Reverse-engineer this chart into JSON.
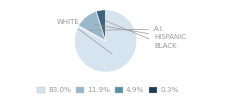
{
  "labels": [
    "WHITE",
    "A.I.",
    "HISPANIC",
    "BLACK"
  ],
  "values": [
    83.0,
    0.3,
    11.9,
    4.9
  ],
  "colors": [
    "#d6e4f0",
    "#5b8fa8",
    "#9ab8cc",
    "#3d6478"
  ],
  "legend_labels": [
    "83.0%",
    "11.9%",
    "4.9%",
    "0.3%"
  ],
  "legend_colors": [
    "#d6e4f0",
    "#9ab8cc",
    "#5b8fa8",
    "#1c3a52"
  ],
  "bg_color": "#ffffff",
  "text_color": "#999999",
  "label_fontsize": 5.0,
  "legend_fontsize": 5.2
}
